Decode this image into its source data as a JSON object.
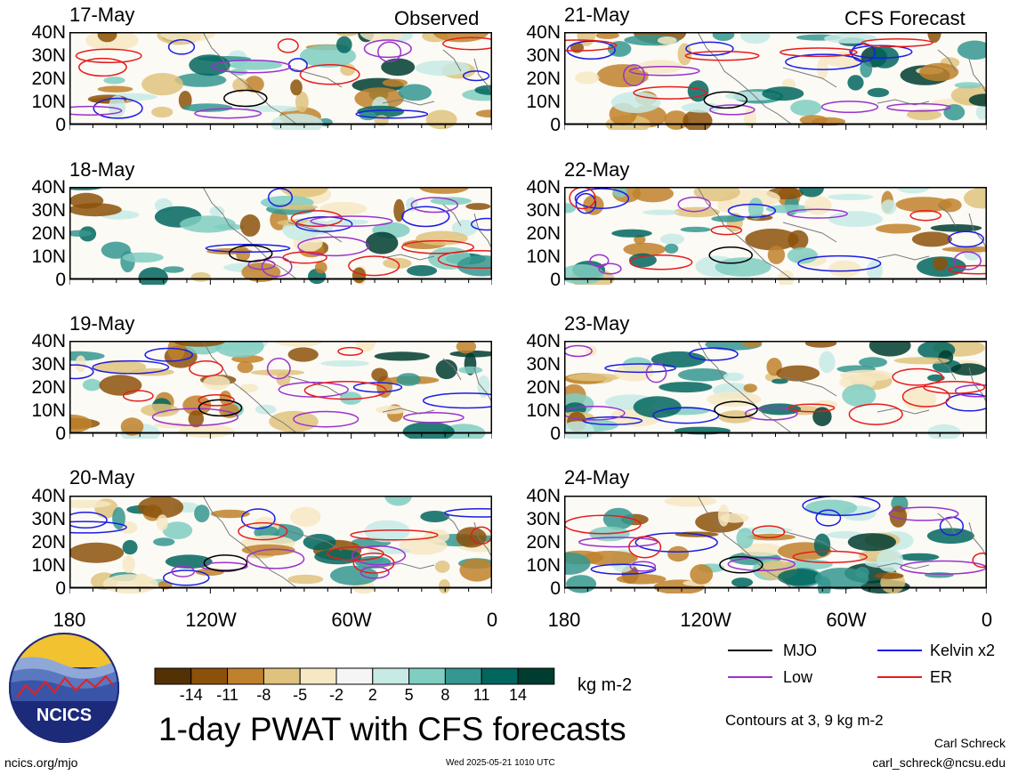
{
  "headers": {
    "left": "Observed",
    "right": "CFS Forecast"
  },
  "panels": {
    "left": [
      "17-May",
      "18-May",
      "19-May",
      "20-May"
    ],
    "right": [
      "21-May",
      "22-May",
      "23-May",
      "24-May"
    ]
  },
  "y_ticks": [
    "40N",
    "30N",
    "20N",
    "10N",
    "0"
  ],
  "x_ticks": [
    "180",
    "120W",
    "60W",
    "0"
  ],
  "colorbar": {
    "labels": [
      "-14",
      "-11",
      "-8",
      "-5",
      "-2",
      "2",
      "5",
      "8",
      "11",
      "14"
    ],
    "colors": [
      "#543005",
      "#8c5109",
      "#bf812c",
      "#dfc27d",
      "#f6e8c3",
      "#f5f5f5",
      "#c7eae5",
      "#80cdc1",
      "#35978f",
      "#01665e",
      "#003c30"
    ],
    "unit": "kg m-2"
  },
  "legend": {
    "items": [
      {
        "label": "MJO",
        "color": "#000000"
      },
      {
        "label": "Kelvin x2",
        "color": "#1c1ce6"
      },
      {
        "label": "Low",
        "color": "#9a32cd"
      },
      {
        "label": "ER",
        "color": "#e61c1c"
      }
    ],
    "contours_note": "Contours at 3, 9 kg m-2"
  },
  "title": "1-day PWAT with CFS forecasts",
  "logo_text": "NCICS",
  "footer": {
    "url": "ncics.org/mjo",
    "timestamp": "Wed 2025-05-21 1010 UTC",
    "author": "Carl Schreck",
    "email": "carl_schreck@ncsu.edu"
  },
  "chart_data": {
    "type": "heatmap",
    "title": "1-day PWAT with CFS forecasts",
    "variable": "PWAT anomaly",
    "unit": "kg m-2",
    "x_ticks": [
      "180",
      "120W",
      "60W",
      "0"
    ],
    "xlim": [
      -180,
      0
    ],
    "y_ticks": [
      "40N",
      "30N",
      "20N",
      "10N",
      "0"
    ],
    "ylim": [
      0,
      40
    ],
    "color_levels": [
      -14,
      -11,
      -8,
      -5,
      -2,
      2,
      5,
      8,
      11,
      14
    ],
    "contour_levels": [
      3,
      9
    ],
    "contour_series": [
      "MJO",
      "Kelvin x2",
      "Low",
      "ER"
    ],
    "panels": [
      {
        "date": "17-May",
        "source": "Observed"
      },
      {
        "date": "18-May",
        "source": "Observed"
      },
      {
        "date": "19-May",
        "source": "Observed"
      },
      {
        "date": "20-May",
        "source": "Observed"
      },
      {
        "date": "21-May",
        "source": "CFS Forecast"
      },
      {
        "date": "22-May",
        "source": "CFS Forecast"
      },
      {
        "date": "23-May",
        "source": "CFS Forecast"
      },
      {
        "date": "24-May",
        "source": "CFS Forecast"
      }
    ]
  }
}
